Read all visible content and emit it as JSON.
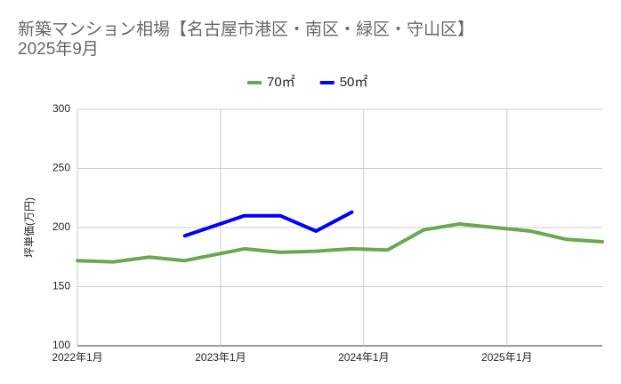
{
  "chart_data": {
    "type": "line",
    "title": "新築マンション相場【名古屋市港区・南区・緑区・守山区】",
    "subtitle": "2025年9月",
    "y_label": "坪単価(万円)",
    "x": [
      "2022-01",
      "2022-04",
      "2022-07",
      "2022-10",
      "2023-03",
      "2023-06",
      "2023-09",
      "2023-12",
      "2024-03",
      "2024-06",
      "2024-09",
      "2024-12",
      "2025-03",
      "2025-06",
      "2025-09"
    ],
    "series": [
      {
        "name": "70㎡",
        "color": "#6aa84f",
        "values": [
          172,
          171,
          175,
          172,
          182,
          179,
          180,
          182,
          181,
          198,
          203,
          200,
          197,
          190,
          188
        ]
      },
      {
        "name": "50㎡",
        "color": "#0000ff",
        "values": [
          null,
          null,
          null,
          193,
          210,
          210,
          197,
          213,
          null,
          null,
          null,
          null,
          null,
          null,
          null
        ]
      }
    ],
    "xlim": [
      "2022-01",
      "2025-09"
    ],
    "xticks": [
      {
        "value": "2022-01",
        "label": "2022年1月"
      },
      {
        "value": "2023-01",
        "label": "2023年1月"
      },
      {
        "value": "2024-01",
        "label": "2024年1月"
      },
      {
        "value": "2025-01",
        "label": "2025年1月"
      }
    ],
    "ylim": [
      100,
      300
    ],
    "yticks": [
      100,
      150,
      200,
      250,
      300
    ],
    "grid": true,
    "legend": "top"
  }
}
